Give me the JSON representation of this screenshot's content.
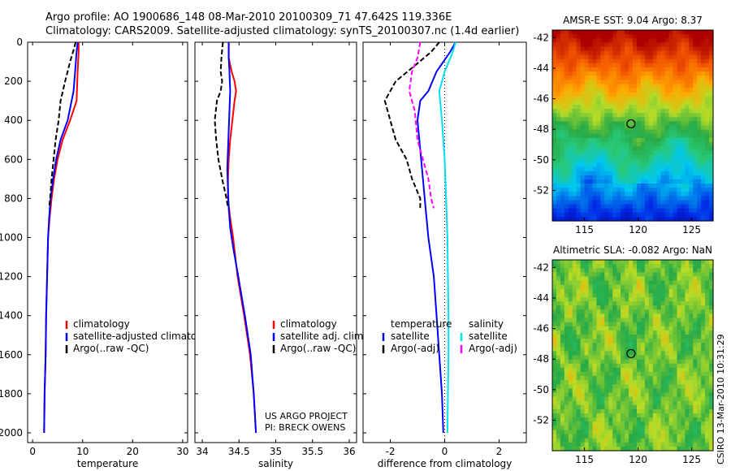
{
  "header": {
    "line1": "Argo profile: AO 1900686_148 08-Mar-2010 20100309_71 47.642S 119.336E",
    "line2": "Climatology: CARS2009. Satellite-adjusted climatology: synTS_20100307.nc (1.4d earlier)"
  },
  "footer": {
    "credit": "CSIRO 13-Mar-2010 10:31:29",
    "project": "US ARGO PROJECT",
    "pi": "PI: BRECK OWENS"
  },
  "colors": {
    "clim": "#ff0000",
    "sat": "#0000ff",
    "argo": "#000000",
    "sal_sat": "#00e0f0",
    "sal_argo": "#ff00ff"
  },
  "chart_data": [
    {
      "id": "temperature",
      "type": "line",
      "xlabel": "temperature",
      "xlim": [
        -1,
        31
      ],
      "ylim": [
        2050,
        0
      ],
      "xticks": [
        0,
        10,
        20,
        30
      ],
      "yticks": [
        0,
        200,
        400,
        600,
        800,
        1000,
        1200,
        1400,
        1600,
        1800,
        2000
      ],
      "legend": {
        "placement": "lower-middle",
        "entries": [
          {
            "label": "climatology",
            "color": "#ff0000"
          },
          {
            "label": "satellite-adjusted climatology",
            "color": "#0000ff"
          },
          {
            "label": "Argo(..raw -QC)",
            "color": "#000000"
          }
        ]
      },
      "series": [
        {
          "name": "climatology",
          "color": "#ff0000",
          "dash": "",
          "points": [
            [
              9.2,
              0
            ],
            [
              9.2,
              50
            ],
            [
              9.0,
              150
            ],
            [
              8.8,
              300
            ],
            [
              7.5,
              400
            ],
            [
              6.0,
              500
            ],
            [
              5.0,
              600
            ],
            [
              4.3,
              700
            ],
            [
              3.8,
              800
            ],
            [
              3.4,
              900
            ],
            [
              3.1,
              1000
            ],
            [
              2.9,
              1200
            ],
            [
              2.7,
              1400
            ],
            [
              2.6,
              1600
            ],
            [
              2.4,
              1800
            ],
            [
              2.3,
              2000
            ]
          ]
        },
        {
          "name": "satellite-adjusted climatology",
          "color": "#0000ff",
          "dash": "",
          "points": [
            [
              9.0,
              0
            ],
            [
              8.8,
              50
            ],
            [
              8.5,
              150
            ],
            [
              8.2,
              250
            ],
            [
              7.0,
              400
            ],
            [
              5.6,
              500
            ],
            [
              4.7,
              600
            ],
            [
              4.1,
              700
            ],
            [
              3.6,
              800
            ],
            [
              3.3,
              900
            ],
            [
              3.1,
              1000
            ],
            [
              2.9,
              1200
            ],
            [
              2.7,
              1400
            ],
            [
              2.6,
              1600
            ],
            [
              2.4,
              1800
            ],
            [
              2.3,
              2000
            ]
          ]
        },
        {
          "name": "Argo(..raw -QC)",
          "color": "#000000",
          "dash": "6,3",
          "points": [
            [
              8.6,
              0
            ],
            [
              8.3,
              30
            ],
            [
              7.5,
              100
            ],
            [
              6.5,
              200
            ],
            [
              5.6,
              300
            ],
            [
              5.2,
              400
            ],
            [
              4.6,
              500
            ],
            [
              4.2,
              600
            ],
            [
              3.8,
              700
            ],
            [
              3.5,
              800
            ],
            [
              3.3,
              850
            ]
          ]
        }
      ]
    },
    {
      "id": "salinity",
      "type": "line",
      "xlabel": "salinity",
      "xlim": [
        33.9,
        36.1
      ],
      "ylim": [
        2050,
        0
      ],
      "xticks": [
        34,
        34.5,
        35,
        35.5,
        36
      ],
      "legend": {
        "placement": "lower-right",
        "entries": [
          {
            "label": "climatology",
            "color": "#ff0000"
          },
          {
            "label": "satellite adj. clim.",
            "color": "#0000ff"
          },
          {
            "label": "Argo(..raw -QC)",
            "color": "#000000"
          }
        ]
      },
      "series": [
        {
          "name": "climatology",
          "color": "#ff0000",
          "dash": "",
          "points": [
            [
              34.36,
              0
            ],
            [
              34.36,
              80
            ],
            [
              34.4,
              150
            ],
            [
              34.44,
              200
            ],
            [
              34.46,
              250
            ],
            [
              34.44,
              300
            ],
            [
              34.41,
              400
            ],
            [
              34.38,
              500
            ],
            [
              34.36,
              600
            ],
            [
              34.35,
              700
            ],
            [
              34.35,
              800
            ],
            [
              34.38,
              900
            ],
            [
              34.42,
              1000
            ],
            [
              34.48,
              1200
            ],
            [
              34.57,
              1400
            ],
            [
              34.65,
              1600
            ],
            [
              34.7,
              1800
            ],
            [
              34.73,
              2000
            ]
          ]
        },
        {
          "name": "satellite adj. clim.",
          "color": "#0000ff",
          "dash": "",
          "points": [
            [
              34.36,
              0
            ],
            [
              34.36,
              80
            ],
            [
              34.37,
              150
            ],
            [
              34.38,
              250
            ],
            [
              34.37,
              350
            ],
            [
              34.36,
              450
            ],
            [
              34.35,
              550
            ],
            [
              34.34,
              650
            ],
            [
              34.35,
              750
            ],
            [
              34.36,
              850
            ],
            [
              34.38,
              950
            ],
            [
              34.42,
              1050
            ],
            [
              34.49,
              1200
            ],
            [
              34.58,
              1400
            ],
            [
              34.66,
              1600
            ],
            [
              34.7,
              1800
            ],
            [
              34.73,
              2000
            ]
          ]
        },
        {
          "name": "Argo(..raw -QC)",
          "color": "#000000",
          "dash": "6,3",
          "points": [
            [
              34.28,
              0
            ],
            [
              34.26,
              80
            ],
            [
              34.25,
              150
            ],
            [
              34.27,
              200
            ],
            [
              34.25,
              250
            ],
            [
              34.2,
              300
            ],
            [
              34.17,
              400
            ],
            [
              34.19,
              500
            ],
            [
              34.22,
              600
            ],
            [
              34.27,
              700
            ],
            [
              34.33,
              800
            ],
            [
              34.35,
              850
            ]
          ]
        }
      ],
      "annotations": [
        "US ARGO PROJECT",
        "PI: BRECK OWENS"
      ]
    },
    {
      "id": "difference",
      "type": "line",
      "xlabel": "difference from climatology",
      "xlim": [
        -3,
        3
      ],
      "ylim": [
        2050,
        0
      ],
      "xticks": [
        -2,
        0,
        2
      ],
      "legend": {
        "placement": "lower",
        "entries": [
          {
            "label": "temperature",
            "color": ""
          },
          {
            "label": "satellite",
            "color": "#0000ff"
          },
          {
            "label": "Argo(-adj)",
            "color": "#000000"
          },
          {
            "label": "salinity",
            "color": ""
          },
          {
            "label": "satellite",
            "color": "#00e0f0"
          },
          {
            "label": "Argo(-adj)",
            "color": "#ff00ff"
          }
        ]
      },
      "series": [
        {
          "name": "temperature satellite",
          "color": "#0000ff",
          "dash": "",
          "points": [
            [
              0.4,
              0
            ],
            [
              0.2,
              50
            ],
            [
              -0.3,
              150
            ],
            [
              -0.6,
              250
            ],
            [
              -0.9,
              300
            ],
            [
              -1.0,
              400
            ],
            [
              -0.9,
              550
            ],
            [
              -0.8,
              700
            ],
            [
              -0.7,
              850
            ],
            [
              -0.6,
              1000
            ],
            [
              -0.4,
              1200
            ],
            [
              -0.3,
              1400
            ],
            [
              -0.2,
              1600
            ],
            [
              -0.1,
              1800
            ],
            [
              -0.05,
              2000
            ]
          ]
        },
        {
          "name": "temperature Argo(-adj)",
          "color": "#000000",
          "dash": "6,3",
          "points": [
            [
              -0.2,
              0
            ],
            [
              -0.5,
              50
            ],
            [
              -1.1,
              120
            ],
            [
              -1.8,
              200
            ],
            [
              -2.2,
              300
            ],
            [
              -2.0,
              400
            ],
            [
              -1.8,
              500
            ],
            [
              -1.4,
              600
            ],
            [
              -1.2,
              700
            ],
            [
              -0.9,
              800
            ],
            [
              -0.9,
              850
            ]
          ]
        },
        {
          "name": "salinity satellite",
          "color": "#00e0f0",
          "dash": "",
          "points": [
            [
              0.4,
              0
            ],
            [
              0.3,
              50
            ],
            [
              0.0,
              150
            ],
            [
              -0.2,
              250
            ],
            [
              -0.1,
              400
            ],
            [
              0.0,
              600
            ],
            [
              0.05,
              800
            ],
            [
              0.1,
              1000
            ],
            [
              0.12,
              1200
            ],
            [
              0.14,
              1400
            ],
            [
              0.14,
              1600
            ],
            [
              0.12,
              1800
            ],
            [
              0.1,
              2000
            ]
          ]
        },
        {
          "name": "salinity Argo(-adj)",
          "color": "#ff00ff",
          "dash": "6,3",
          "points": [
            [
              -0.9,
              0
            ],
            [
              -1.0,
              80
            ],
            [
              -1.2,
              150
            ],
            [
              -1.3,
              250
            ],
            [
              -1.1,
              350
            ],
            [
              -1.0,
              500
            ],
            [
              -0.8,
              600
            ],
            [
              -0.6,
              700
            ],
            [
              -0.5,
              800
            ],
            [
              -0.4,
              850
            ]
          ]
        }
      ]
    },
    {
      "id": "amsr_sst",
      "type": "heatmap",
      "title": "AMSR-E SST: 9.04 Argo: 8.37",
      "xlim": [
        112,
        127
      ],
      "ylim": [
        -54,
        -41.5
      ],
      "xticks": [
        115,
        120,
        125
      ],
      "yticks": [
        -42,
        -44,
        -46,
        -48,
        -50,
        -52
      ],
      "marker": [
        119.34,
        -47.64
      ]
    },
    {
      "id": "altimetric_sla",
      "type": "heatmap",
      "title": "Altimetric SLA: -0.082 Argo: NaN",
      "xlim": [
        112,
        127
      ],
      "ylim": [
        -54,
        -41.5
      ],
      "xticks": [
        115,
        120,
        125
      ],
      "yticks": [
        -42,
        -44,
        -46,
        -48,
        -50,
        -52
      ],
      "marker": [
        119.34,
        -47.64
      ]
    }
  ]
}
